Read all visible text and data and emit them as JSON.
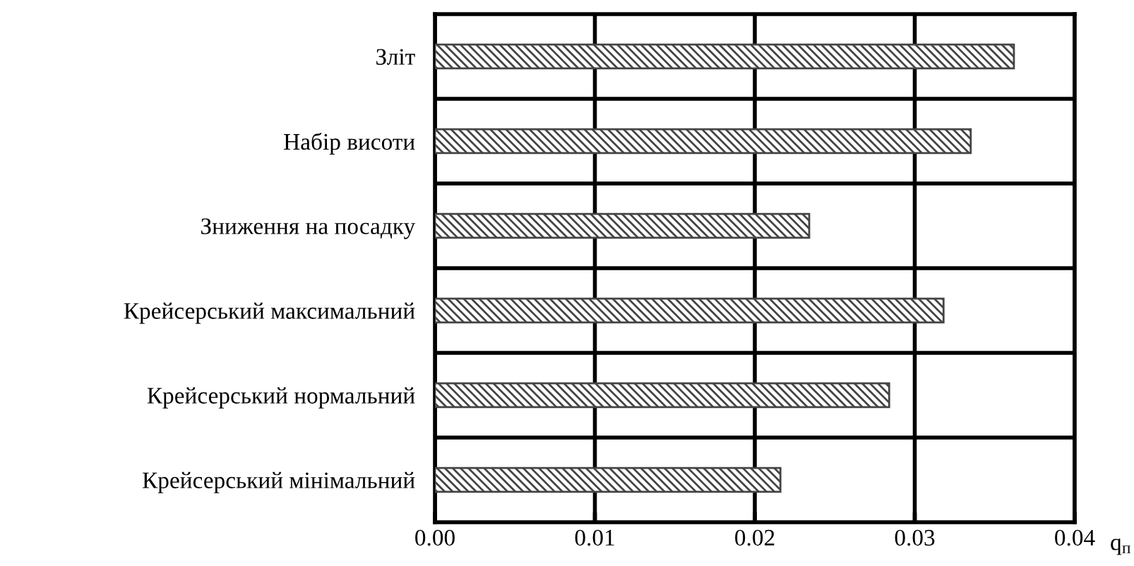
{
  "chart_data": {
    "type": "bar",
    "orientation": "horizontal",
    "xlabel": "q$_{п}$",
    "categories": [
      "Зліт",
      "Набір висоти",
      "Зниження на посадку",
      "Крейсерський максимальний",
      "Крейсерський нормальний",
      "Крейсерський мінімальний"
    ],
    "values": [
      0.0362,
      0.0335,
      0.0234,
      0.0318,
      0.0284,
      0.0216
    ],
    "color": "#444444",
    "xlim": [
      0,
      0.04
    ],
    "xticks": [
      {
        "value": 0,
        "label": "0.00"
      },
      0.01,
      0.02,
      0.03,
      0.04
    ],
    "grid": true
  }
}
